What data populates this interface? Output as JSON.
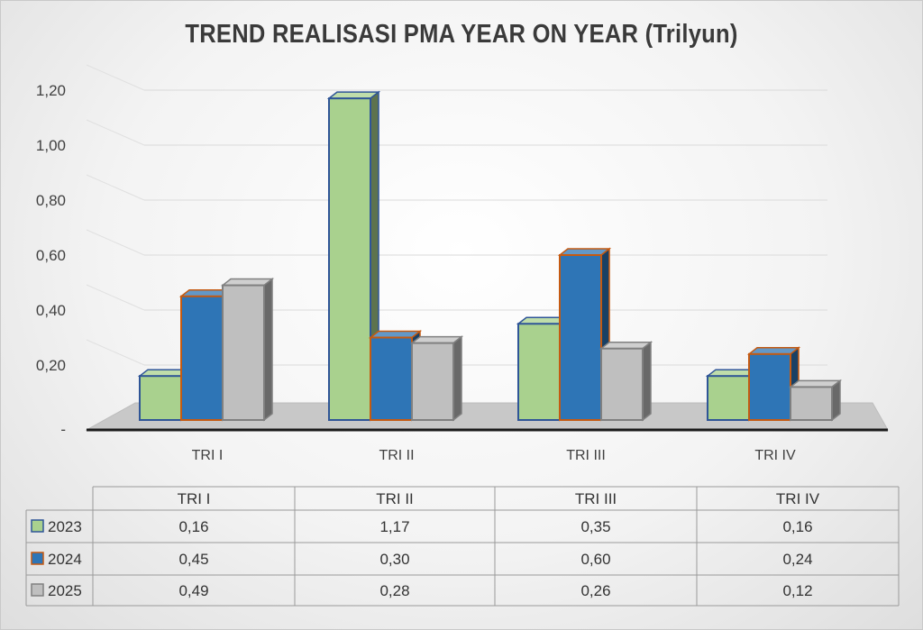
{
  "chart_data": {
    "type": "bar",
    "title": "TREND REALISASI PMA YEAR ON YEAR (Trilyun)",
    "categories": [
      "TRI I",
      "TRI II",
      "TRI III",
      "TRI IV"
    ],
    "series": [
      {
        "name": "2023",
        "values": [
          0.16,
          1.17,
          0.35,
          0.16
        ],
        "value_labels": [
          "0,16",
          "1,17",
          "0,35",
          "0,16"
        ],
        "color": "#a9d18e",
        "edge": "#2f5597"
      },
      {
        "name": "2024",
        "values": [
          0.45,
          0.3,
          0.6,
          0.24
        ],
        "value_labels": [
          "0,45",
          "0,30",
          "0,60",
          "0,24"
        ],
        "color": "#2e75b6",
        "edge": "#c55a11"
      },
      {
        "name": "2025",
        "values": [
          0.49,
          0.28,
          0.26,
          0.12
        ],
        "value_labels": [
          "0,49",
          "0,28",
          "0,26",
          "0,12"
        ],
        "color": "#bfbfbf",
        "edge": "#808080"
      }
    ],
    "ylim": [
      0,
      1.2
    ],
    "yticks": [
      0,
      0.2,
      0.4,
      0.6,
      0.8,
      1.0,
      1.2
    ],
    "ytick_labels": [
      "-",
      "0,20",
      "0,40",
      "0,60",
      "0,80",
      "1,00",
      "1,20"
    ],
    "grid": true,
    "legend": "data-table",
    "xlabel": "",
    "ylabel": ""
  }
}
